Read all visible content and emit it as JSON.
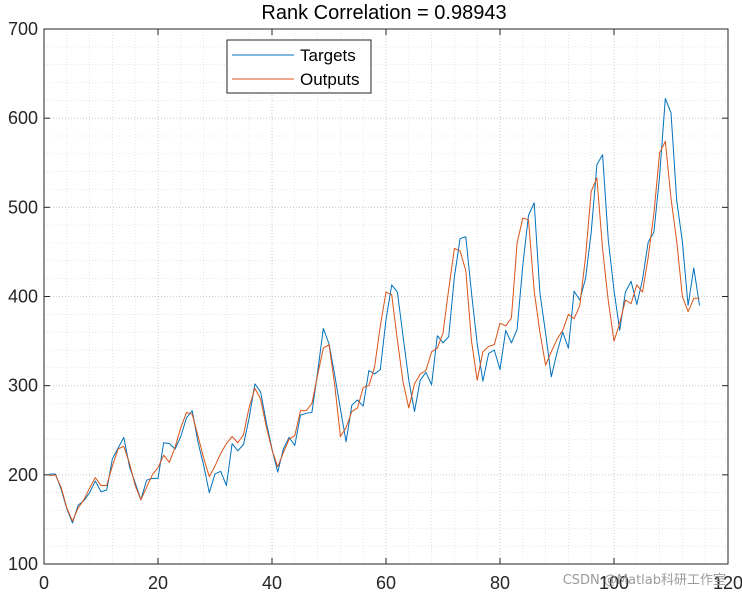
{
  "chart_data": {
    "type": "line",
    "title": "Rank Correlation = 0.98943",
    "xlim": [
      0,
      120
    ],
    "ylim": [
      100,
      700
    ],
    "xticks": [
      0,
      20,
      40,
      60,
      80,
      100,
      120
    ],
    "yticks": [
      100,
      200,
      300,
      400,
      500,
      600,
      700
    ],
    "grid": true,
    "minor_grid": true,
    "legend_position": "top-left",
    "x": [
      1,
      2,
      3,
      4,
      5,
      6,
      7,
      8,
      9,
      10,
      11,
      12,
      13,
      14,
      15,
      16,
      17,
      18,
      19,
      20,
      21,
      22,
      23,
      24,
      25,
      26,
      27,
      28,
      29,
      30,
      31,
      32,
      33,
      34,
      35,
      36,
      37,
      38,
      39,
      40,
      41,
      42,
      43,
      44,
      45,
      46,
      47,
      48,
      49,
      50,
      51,
      52,
      53,
      54,
      55,
      56,
      57,
      58,
      59,
      60,
      61,
      62,
      63,
      64,
      65,
      66,
      67,
      68,
      69,
      70,
      71,
      72,
      73,
      74,
      75,
      76,
      77,
      78,
      79,
      80,
      81,
      82,
      83,
      84,
      85,
      86,
      87,
      88,
      89,
      90,
      91,
      92,
      93,
      94,
      95,
      96,
      97,
      98,
      99,
      100,
      101,
      102,
      103,
      104,
      105,
      106,
      107,
      108,
      109,
      110,
      111,
      112,
      113,
      114,
      115
    ],
    "series": [
      {
        "name": "Targets",
        "color": "#0072bd",
        "values": [
          201,
          201,
          184,
          162,
          146,
          166,
          171,
          180,
          193,
          181,
          183,
          218,
          230,
          242,
          209,
          191,
          172,
          194,
          196,
          196,
          236,
          235,
          229,
          243,
          264,
          272,
          237,
          211,
          180,
          201,
          204,
          188,
          235,
          227,
          234,
          264,
          302,
          293,
          259,
          229,
          203,
          229,
          242,
          233,
          267,
          269,
          270,
          315,
          364,
          347,
          312,
          274,
          237,
          278,
          284,
          277,
          317,
          313,
          318,
          374,
          413,
          405,
          355,
          306,
          271,
          306,
          315,
          301,
          356,
          348,
          355,
          422,
          465,
          467,
          404,
          347,
          305,
          336,
          340,
          318,
          362,
          348,
          363,
          435,
          491,
          505,
          404,
          359,
          310,
          337,
          360,
          342,
          406,
          396,
          420,
          472,
          548,
          559,
          463,
          407,
          362,
          405,
          417,
          391,
          419,
          461,
          472,
          535,
          622,
          606,
          508,
          461,
          390,
          432,
          390
        ]
      },
      {
        "name": "Outputs",
        "color": "#d95319",
        "values": [
          199,
          200,
          186,
          163,
          148,
          163,
          172,
          185,
          197,
          188,
          188,
          210,
          229,
          232,
          213,
          188,
          172,
          186,
          200,
          208,
          222,
          214,
          231,
          253,
          270,
          268,
          244,
          219,
          198,
          210,
          224,
          235,
          243,
          236,
          245,
          276,
          297,
          285,
          254,
          228,
          209,
          225,
          240,
          244,
          272,
          272,
          280,
          312,
          342,
          346,
          301,
          243,
          253,
          271,
          275,
          298,
          300,
          321,
          367,
          405,
          402,
          351,
          304,
          275,
          302,
          313,
          317,
          338,
          342,
          359,
          408,
          454,
          451,
          429,
          350,
          306,
          338,
          344,
          346,
          370,
          367,
          376,
          460,
          488,
          486,
          406,
          360,
          323,
          338,
          352,
          362,
          380,
          375,
          390,
          444,
          518,
          533,
          453,
          395,
          350,
          370,
          396,
          392,
          413,
          405,
          444,
          493,
          561,
          574,
          510,
          462,
          400,
          383,
          398,
          398
        ]
      }
    ],
    "watermark": "CSDN @Matlab科研工作室"
  }
}
